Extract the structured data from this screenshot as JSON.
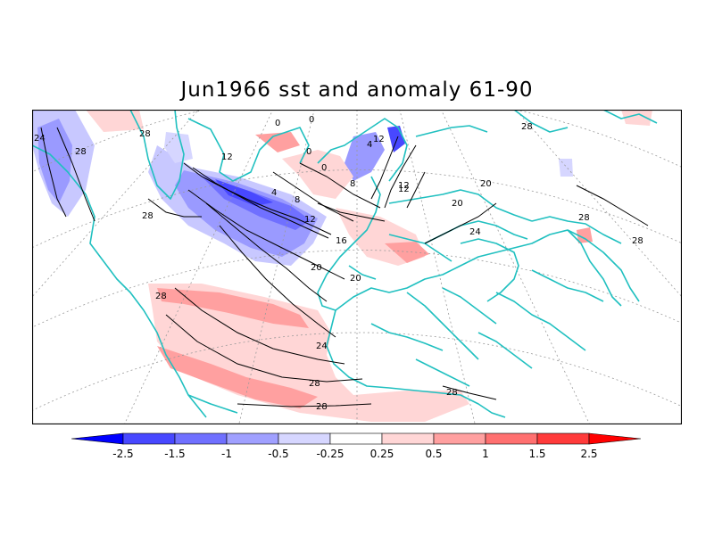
{
  "title": "Jun1966 sst and anomaly 61-90",
  "colors": {
    "coast": "#20c0c0",
    "contour": "#000000",
    "grid": "#9a9a9a",
    "frame": "#000000"
  },
  "contour_labels": [
    "24",
    "28",
    "28",
    "28",
    "28",
    "28",
    "28",
    "28",
    "28",
    "28",
    "28",
    "24",
    "24",
    "20",
    "20",
    "20",
    "20",
    "16",
    "12",
    "12",
    "12",
    "8",
    "8",
    "4",
    "4",
    "0",
    "0",
    "0",
    "0",
    "12",
    "12"
  ],
  "colorbar": {
    "tick_labels": [
      "-2.5",
      "-1.5",
      "-1",
      "-0.5",
      "-0.25",
      "0.25",
      "0.5",
      "1",
      "1.5",
      "2.5"
    ],
    "fills": [
      "#0000ff",
      "#4848ff",
      "#7070ff",
      "#a0a0ff",
      "#d6d6ff",
      "#ffffff",
      "#ffd6d6",
      "#ffa0a0",
      "#ff7070",
      "#ff3b3b",
      "#ff0000"
    ]
  }
}
